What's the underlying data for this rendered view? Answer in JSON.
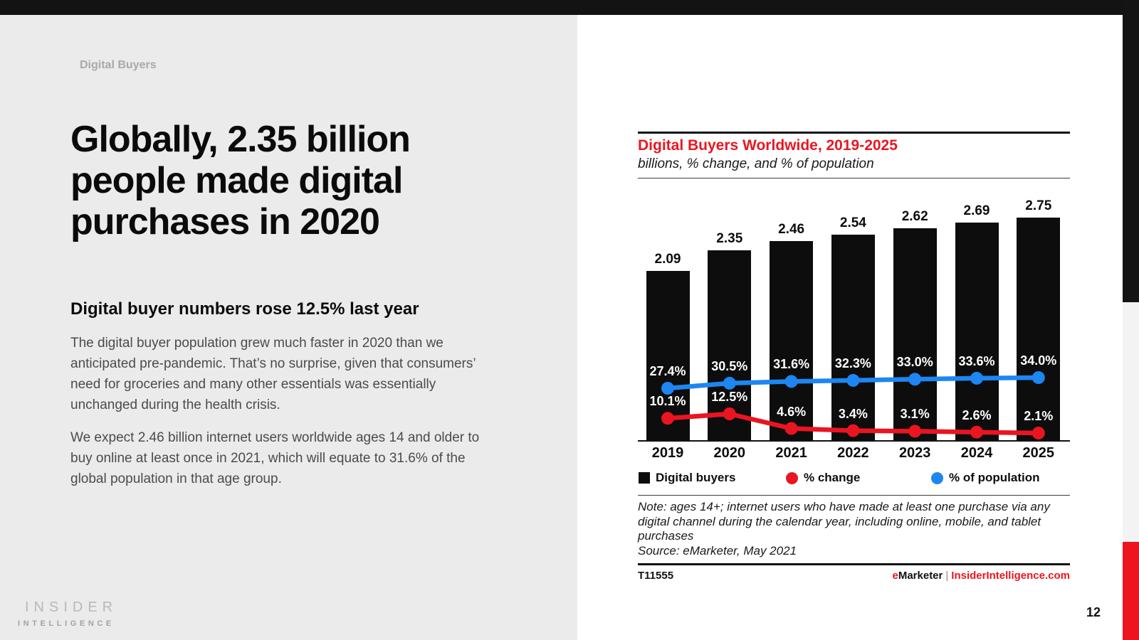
{
  "page": {
    "number": "12"
  },
  "eyebrow": "Digital Buyers",
  "headline": "Globally, 2.35 billion people made digital purchases in 2020",
  "subheadline": "Digital buyer numbers rose 12.5% last year",
  "paragraphs": [
    "The digital buyer population grew much faster in 2020 than we anticipated pre-pandemic. That’s no surprise, given that consumers’ need for groceries and many other essentials was essentially unchanged during the health crisis.",
    "We expect 2.46 billion internet users worldwide ages 14 and older to buy online at least once in 2021, which will equate to 31.6% of the global population in that age group."
  ],
  "logo": {
    "line1": "INSIDER",
    "line2": "INTELLIGENCE"
  },
  "chart_card": {
    "title": "Digital Buyers Worldwide, 2019-2025",
    "subtitle": "billions, % change, and % of population",
    "note_lines": [
      "Note: ages 14+; internet users who have made at least one purchase via any",
      "digital channel during the calendar year, including online, mobile, and tablet",
      "purchases"
    ],
    "source": "Source: eMarketer, May 2021",
    "chart_id": "T11555",
    "brand": {
      "prefix": "e",
      "rest": "Marketer",
      "separator": "|",
      "site": "InsiderIntelligence.com"
    }
  },
  "chart_data": {
    "type": "bar",
    "subtype": "combo-bar-line",
    "title": "Digital Buyers Worldwide, 2019-2025",
    "subtitle": "billions, % change, and % of population",
    "categories": [
      "2019",
      "2020",
      "2021",
      "2022",
      "2023",
      "2024",
      "2025"
    ],
    "series": [
      {
        "name": "Digital buyers",
        "type": "bar",
        "unit": "billions",
        "color": "#0d0d0d",
        "values": [
          2.09,
          2.35,
          2.46,
          2.54,
          2.62,
          2.69,
          2.75
        ]
      },
      {
        "name": "% change",
        "type": "line",
        "unit": "%",
        "color": "#e91521",
        "values": [
          10.1,
          12.5,
          4.6,
          3.4,
          3.1,
          2.6,
          2.1
        ]
      },
      {
        "name": "% of population",
        "type": "line",
        "unit": "%",
        "color": "#1d86f2",
        "values": [
          27.4,
          30.5,
          31.6,
          32.3,
          33.0,
          33.6,
          34.0
        ]
      }
    ],
    "bar_ylim": [
      0,
      3.25
    ],
    "grid": false,
    "legend_position": "bottom"
  },
  "colors": {
    "accent_red": "#ea1621",
    "line_red": "#e91521",
    "line_blue": "#1d86f2",
    "bar_black": "#0d0d0d",
    "left_bg": "#ebebeb",
    "strip_gray": "#f3f3f3",
    "strip_red": "#ed1420"
  }
}
